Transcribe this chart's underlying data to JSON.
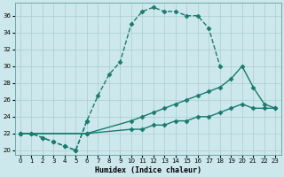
{
  "xlabel": "Humidex (Indice chaleur)",
  "bg_color": "#cce8ec",
  "line_color": "#1a7a6e",
  "grid_color": "#aacccc",
  "xlim": [
    -0.5,
    23.5
  ],
  "ylim": [
    19.5,
    37.5
  ],
  "xtick_pos": [
    0,
    1,
    2,
    3,
    4,
    5,
    6,
    7,
    8,
    9,
    10,
    11,
    12,
    13,
    14,
    15,
    16,
    17,
    18,
    19,
    20,
    21,
    22,
    23
  ],
  "ytick_pos": [
    20,
    22,
    24,
    26,
    28,
    30,
    32,
    34,
    36
  ],
  "lines": [
    {
      "x": [
        0,
        1,
        2,
        3,
        4,
        5,
        6,
        7,
        8,
        9,
        10,
        11,
        12,
        13,
        14,
        15,
        16,
        17,
        18
      ],
      "y": [
        22,
        22,
        21.5,
        21,
        20.5,
        20,
        23.5,
        26.5,
        29,
        30.5,
        35,
        36.5,
        37,
        36.5,
        36.5,
        36,
        36,
        34.5,
        30
      ],
      "linestyle": "--",
      "marker": "D",
      "ms": 2.5,
      "lw": 1.0
    },
    {
      "x": [
        0,
        6,
        10,
        11,
        12,
        13,
        14,
        15,
        16,
        17,
        18,
        19,
        20,
        21,
        22,
        23
      ],
      "y": [
        22,
        22,
        23.5,
        24,
        24.5,
        25,
        25.5,
        26,
        26.5,
        27,
        27.5,
        28.5,
        30,
        27.5,
        25.5,
        25
      ],
      "linestyle": "-",
      "marker": "D",
      "ms": 2.5,
      "lw": 1.0
    },
    {
      "x": [
        0,
        6,
        10,
        11,
        12,
        13,
        14,
        15,
        16,
        17,
        18,
        19,
        20,
        21,
        22,
        23
      ],
      "y": [
        22,
        22,
        22.5,
        22.5,
        23,
        23,
        23.5,
        23.5,
        24,
        24,
        24.5,
        25,
        25.5,
        25,
        25,
        25
      ],
      "linestyle": "-",
      "marker": "D",
      "ms": 2.5,
      "lw": 1.0
    },
    {
      "x": [
        0,
        1,
        2,
        3,
        4,
        5,
        6
      ],
      "y": [
        22,
        22,
        21.5,
        21,
        20.5,
        20,
        23.5
      ],
      "linestyle": "--",
      "marker": "D",
      "ms": 2.5,
      "lw": 1.0
    }
  ]
}
